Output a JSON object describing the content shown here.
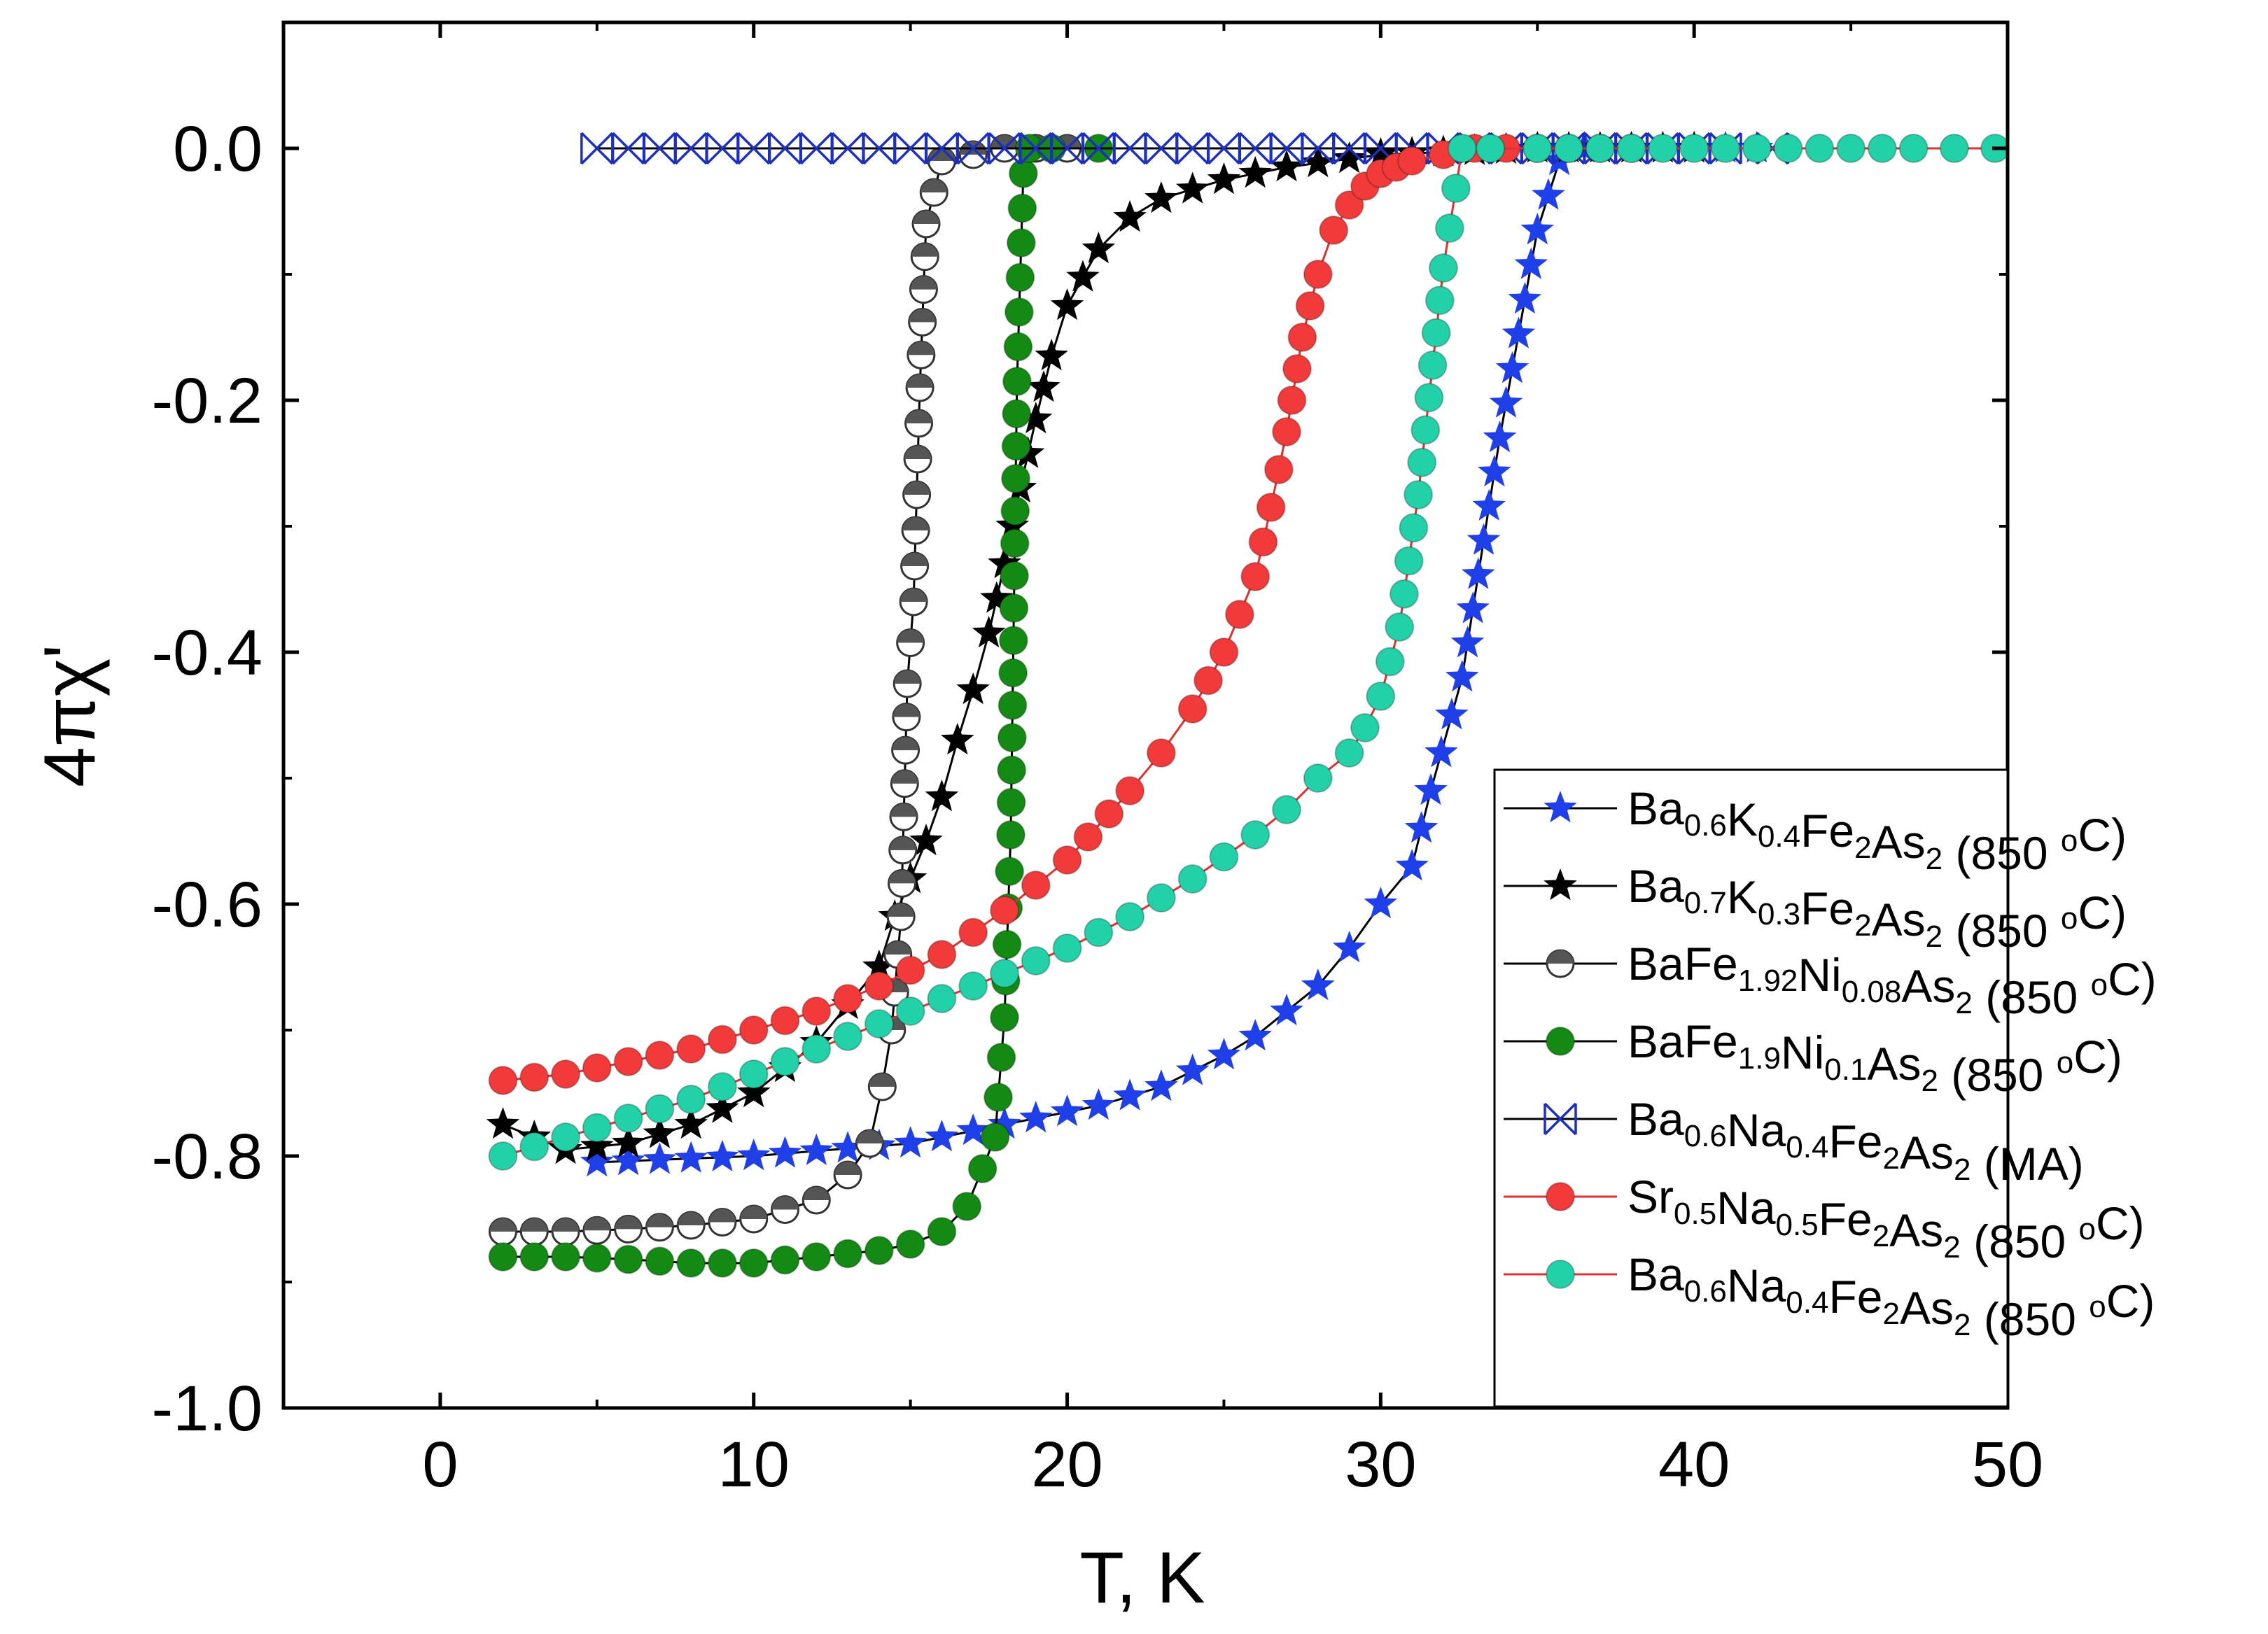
{
  "chart_data": {
    "type": "scatter",
    "title": "",
    "xlabel": "T, K",
    "ylabel": "4πχ'",
    "xlim": [
      -5,
      50
    ],
    "ylim": [
      -1.0,
      0.1
    ],
    "x_ticks": [
      "0",
      "10",
      "20",
      "30",
      "40",
      "50"
    ],
    "y_ticks": [
      "0.0",
      "-0.2",
      "-0.4",
      "-0.6",
      "-0.8",
      "-1.0"
    ],
    "legend_position": "lower-right",
    "series": [
      {
        "name": "Ba0.6K0.4Fe2As2 (850 °C)",
        "label_parts": [
          [
            "Ba",
            ""
          ],
          [
            "0.6",
            "sub"
          ],
          [
            "K",
            ""
          ],
          [
            "0.4",
            "sub"
          ],
          [
            "Fe",
            ""
          ],
          [
            "2",
            "sub"
          ],
          [
            "As",
            ""
          ],
          [
            "2",
            "sub"
          ],
          [
            " (850 ",
            ""
          ],
          [
            "o",
            "sup"
          ],
          [
            "C)",
            ""
          ]
        ],
        "marker": "star",
        "color": "#1f3fe8",
        "line_color": "#000000",
        "x": [
          5,
          10,
          15,
          17,
          19,
          21,
          23,
          25,
          26,
          27,
          28,
          29,
          30,
          31,
          31.6,
          32.6,
          33.8,
          35.0,
          35.7,
          36.5,
          38,
          40,
          42
        ],
        "y": [
          -0.805,
          -0.8,
          -0.79,
          -0.78,
          -0.77,
          -0.76,
          -0.745,
          -0.72,
          -0.705,
          -0.685,
          -0.665,
          -0.635,
          -0.6,
          -0.57,
          -0.51,
          -0.42,
          -0.23,
          -0.065,
          -0.01,
          0.0,
          0.0,
          0.0,
          0.0
        ]
      },
      {
        "name": "Ba0.7K0.3Fe2As2 (850 °C)",
        "label_parts": [
          [
            "Ba",
            ""
          ],
          [
            "0.7",
            "sub"
          ],
          [
            "K",
            ""
          ],
          [
            "0.3",
            "sub"
          ],
          [
            "Fe",
            ""
          ],
          [
            "2",
            "sub"
          ],
          [
            "As",
            ""
          ],
          [
            "2",
            "sub"
          ],
          [
            " (850 ",
            ""
          ],
          [
            "o",
            "sup"
          ],
          [
            "C)",
            ""
          ]
        ],
        "marker": "star",
        "color": "#000000",
        "line_color": "#000000",
        "x": [
          2,
          4,
          6,
          8,
          10,
          12,
          13,
          14,
          14.5,
          15,
          15.5,
          16,
          16.5,
          17,
          17.5,
          18,
          18.5,
          19,
          19.5,
          20,
          21,
          22,
          23,
          25,
          27,
          30,
          35,
          40
        ],
        "y": [
          -0.775,
          -0.795,
          -0.79,
          -0.775,
          -0.75,
          -0.71,
          -0.68,
          -0.65,
          -0.61,
          -0.58,
          -0.55,
          -0.515,
          -0.47,
          -0.43,
          -0.385,
          -0.33,
          -0.27,
          -0.215,
          -0.165,
          -0.125,
          -0.08,
          -0.055,
          -0.04,
          -0.025,
          -0.015,
          -0.005,
          0.0,
          0.0
        ]
      },
      {
        "name": "BaFe1.92Ni0.08As2 (850 °C)",
        "label_parts": [
          [
            "BaFe",
            ""
          ],
          [
            "1.92",
            "sub"
          ],
          [
            "Ni",
            ""
          ],
          [
            "0.08",
            "sub"
          ],
          [
            "As",
            ""
          ],
          [
            "2",
            "sub"
          ],
          [
            " (850 ",
            ""
          ],
          [
            "o",
            "sup"
          ],
          [
            "C)",
            ""
          ]
        ],
        "marker": "half-circle",
        "color": "#555555",
        "line_color": "#000000",
        "x": [
          2,
          4,
          6,
          8,
          10,
          12,
          13,
          13.7,
          14.1,
          14.4,
          14.7,
          14.9,
          15.1,
          15.3,
          15.5,
          16,
          18,
          20
        ],
        "y": [
          -0.86,
          -0.86,
          -0.858,
          -0.855,
          -0.85,
          -0.835,
          -0.815,
          -0.79,
          -0.745,
          -0.7,
          -0.61,
          -0.425,
          -0.36,
          -0.19,
          -0.06,
          -0.01,
          0.0,
          0.0
        ]
      },
      {
        "name": "BaFe1.9Ni0.1As2 (850 °C)",
        "label_parts": [
          [
            "BaFe",
            ""
          ],
          [
            "1.9",
            "sub"
          ],
          [
            "Ni",
            ""
          ],
          [
            "0.1",
            "sub"
          ],
          [
            "As",
            ""
          ],
          [
            "2",
            "sub"
          ],
          [
            " (850 ",
            ""
          ],
          [
            "o",
            "sup"
          ],
          [
            "C)",
            ""
          ]
        ],
        "marker": "circle",
        "color": "#138a13",
        "line_color": "#000000",
        "x": [
          2,
          4,
          6,
          8,
          10,
          12,
          14,
          15,
          16,
          16.8,
          17.3,
          17.7,
          18.0,
          18.2,
          18.4,
          18.6,
          18.8,
          19.5,
          21
        ],
        "y": [
          -0.88,
          -0.88,
          -0.882,
          -0.885,
          -0.885,
          -0.88,
          -0.875,
          -0.87,
          -0.86,
          -0.84,
          -0.81,
          -0.785,
          -0.69,
          -0.545,
          -0.185,
          -0.02,
          0.0,
          0.0,
          0.0
        ]
      },
      {
        "name": "Ba0.6Na0.4Fe2As2 (MA)",
        "label_parts": [
          [
            "Ba",
            ""
          ],
          [
            "0.6",
            "sub"
          ],
          [
            "Na",
            ""
          ],
          [
            "0.4",
            "sub"
          ],
          [
            "Fe",
            ""
          ],
          [
            "2",
            "sub"
          ],
          [
            "As",
            ""
          ],
          [
            "2",
            "sub"
          ],
          [
            " (MA)",
            ""
          ]
        ],
        "marker": "box-x",
        "color": "#1c2fbf",
        "line_color": "#000000",
        "x": [
          5,
          7,
          9,
          11,
          13,
          15,
          17,
          19,
          21,
          23,
          25,
          27,
          29,
          31,
          33,
          35,
          37,
          39,
          41,
          42.5
        ],
        "y": [
          0,
          0,
          0,
          0,
          0,
          0,
          0,
          0,
          0,
          0,
          0,
          0,
          0,
          0,
          0,
          0,
          0,
          0,
          0,
          0
        ]
      },
      {
        "name": "Sr0.5Na0.5Fe2As2 (850 °C)",
        "label_parts": [
          [
            "Sr",
            ""
          ],
          [
            "0.5",
            "sub"
          ],
          [
            "Na",
            ""
          ],
          [
            "0.5",
            "sub"
          ],
          [
            "Fe",
            ""
          ],
          [
            "2",
            "sub"
          ],
          [
            "As",
            ""
          ],
          [
            "2",
            "sub"
          ],
          [
            " (850 ",
            ""
          ],
          [
            "o",
            "sup"
          ],
          [
            "C)",
            ""
          ]
        ],
        "marker": "circle",
        "color": "#f23a3a",
        "line_color": "#e03030",
        "x": [
          2,
          4,
          6,
          8,
          10,
          12,
          14,
          16,
          18,
          20,
          22,
          23,
          24,
          25,
          26,
          26.5,
          27,
          27.5,
          28,
          28.5,
          29,
          29.5,
          30,
          30.5,
          31,
          32,
          33,
          35,
          38
        ],
        "y": [
          -0.74,
          -0.735,
          -0.725,
          -0.715,
          -0.7,
          -0.685,
          -0.665,
          -0.64,
          -0.605,
          -0.565,
          -0.51,
          -0.48,
          -0.445,
          -0.4,
          -0.34,
          -0.285,
          -0.225,
          -0.15,
          -0.1,
          -0.065,
          -0.045,
          -0.03,
          -0.02,
          -0.015,
          -0.01,
          -0.005,
          0.0,
          0.0,
          0.0
        ]
      },
      {
        "name": "Ba0.6Na0.4Fe2As2 (850 °C)",
        "label_parts": [
          [
            "Ba",
            ""
          ],
          [
            "0.6",
            "sub"
          ],
          [
            "Na",
            ""
          ],
          [
            "0.4",
            "sub"
          ],
          [
            "Fe",
            ""
          ],
          [
            "2",
            "sub"
          ],
          [
            "As",
            ""
          ],
          [
            "2",
            "sub"
          ],
          [
            " (850 ",
            ""
          ],
          [
            "o",
            "sup"
          ],
          [
            "C)",
            ""
          ]
        ],
        "marker": "circle",
        "color": "#22d1a8",
        "line_color": "#e03030",
        "x": [
          2,
          4,
          6,
          8,
          10,
          12,
          14,
          16,
          18,
          20,
          22,
          24,
          26,
          27,
          28,
          29,
          29.5,
          30,
          30.6,
          31.2,
          32.0,
          32.6,
          33.5,
          35,
          38,
          41,
          44,
          47,
          49.6
        ],
        "y": [
          -0.8,
          -0.785,
          -0.77,
          -0.755,
          -0.735,
          -0.715,
          -0.695,
          -0.675,
          -0.655,
          -0.635,
          -0.61,
          -0.58,
          -0.545,
          -0.525,
          -0.5,
          -0.48,
          -0.46,
          -0.435,
          -0.38,
          -0.275,
          -0.095,
          0.0,
          0.0,
          0.0,
          0.0,
          0.0,
          0.0,
          0.0,
          0.0
        ]
      }
    ]
  }
}
